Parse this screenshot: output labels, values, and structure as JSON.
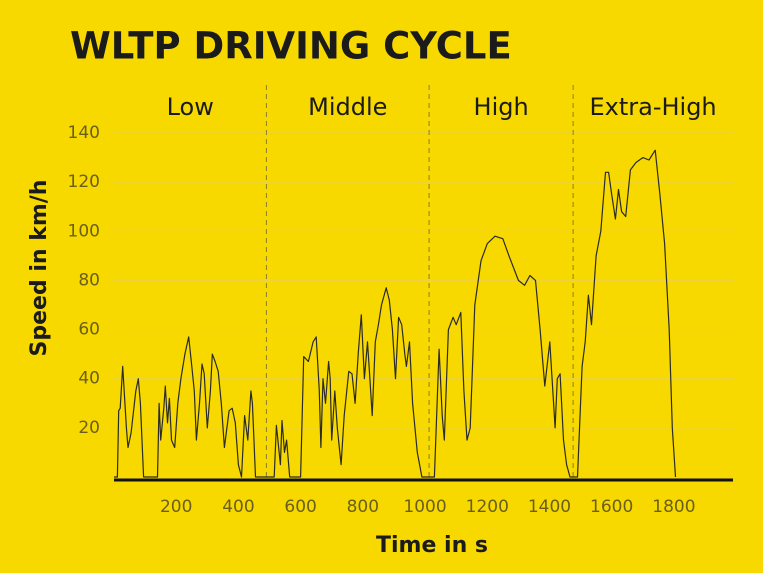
{
  "chart_data": {
    "type": "line",
    "title": "WLTP DRIVING CYCLE",
    "x_label": "Time in s",
    "y_label": "Speed in km/h",
    "phases": [
      "Low",
      "Middle",
      "High",
      "Extra-High"
    ],
    "phase_boundaries": [
      490,
      1013,
      1476
    ],
    "color": "#2b2b2b",
    "xlim": [
      0,
      1990
    ],
    "ylim": [
      0,
      140
    ],
    "xticks": [
      200,
      400,
      600,
      800,
      1000,
      1200,
      1400,
      1600,
      1800
    ],
    "yticks": [
      20,
      40,
      60,
      80,
      100,
      120,
      140
    ],
    "grid": true,
    "x": [
      0,
      11,
      15,
      20,
      28,
      40,
      45,
      55,
      70,
      78,
      85,
      95,
      140,
      145,
      150,
      160,
      165,
      172,
      178,
      185,
      195,
      205,
      215,
      228,
      240,
      250,
      258,
      265,
      275,
      283,
      290,
      300,
      310,
      316,
      325,
      335,
      345,
      355,
      370,
      380,
      390,
      400,
      410,
      420,
      430,
      440,
      445,
      455,
      515,
      522,
      535,
      540,
      548,
      555,
      565,
      600,
      610,
      625,
      640,
      650,
      660,
      665,
      672,
      680,
      690,
      695,
      700,
      710,
      718,
      730,
      740,
      755,
      765,
      775,
      785,
      795,
      805,
      815,
      820,
      830,
      840,
      850,
      860,
      875,
      885,
      895,
      905,
      915,
      925,
      935,
      940,
      950,
      960,
      975,
      990,
      1030,
      1045,
      1055,
      1062,
      1075,
      1090,
      1100,
      1115,
      1125,
      1135,
      1145,
      1160,
      1180,
      1200,
      1225,
      1250,
      1270,
      1285,
      1300,
      1320,
      1337,
      1355,
      1370,
      1385,
      1401,
      1418,
      1425,
      1434,
      1445,
      1455,
      1466,
      1490,
      1505,
      1515,
      1525,
      1535,
      1550,
      1565,
      1580,
      1590,
      1600,
      1612,
      1622,
      1632,
      1645,
      1660,
      1678,
      1700,
      1720,
      1740,
      1755,
      1770,
      1785,
      1795,
      1805
    ],
    "values": [
      0,
      0,
      27,
      28,
      45,
      20,
      12,
      18,
      35,
      40,
      30,
      0,
      0,
      30,
      15,
      28,
      37,
      22,
      32,
      15,
      12,
      30,
      40,
      50,
      57,
      45,
      35,
      15,
      30,
      46,
      42,
      20,
      35,
      50,
      47,
      43,
      30,
      12,
      27,
      28,
      22,
      5,
      0,
      25,
      15,
      35,
      30,
      0,
      0,
      21,
      5,
      23,
      10,
      15,
      0,
      0,
      49,
      47,
      55,
      57,
      35,
      12,
      40,
      30,
      47,
      40,
      15,
      35,
      20,
      5,
      25,
      43,
      42,
      30,
      50,
      66,
      40,
      55,
      45,
      25,
      55,
      62,
      70,
      77,
      72,
      60,
      40,
      65,
      62,
      50,
      45,
      55,
      30,
      10,
      0,
      0,
      52,
      25,
      15,
      60,
      65,
      62,
      67,
      35,
      15,
      20,
      70,
      88,
      95,
      98,
      97,
      90,
      85,
      80,
      78,
      82,
      80,
      60,
      37,
      55,
      20,
      40,
      42,
      15,
      5,
      0,
      0,
      45,
      55,
      74,
      62,
      90,
      100,
      124,
      124,
      115,
      105,
      117,
      108,
      106,
      125,
      128,
      130,
      129,
      133,
      115,
      95,
      60,
      20,
      0
    ]
  }
}
